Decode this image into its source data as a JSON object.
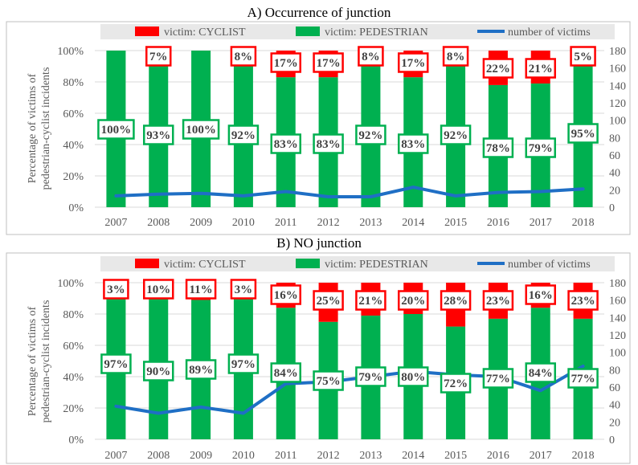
{
  "colors": {
    "cyclist": "#ff0000",
    "pedestrian": "#00b050",
    "line": "#1f6fc5",
    "panel_border": "#bfbfbf",
    "legend_bg": "#e8e8e8",
    "grid": "#d9d9d9",
    "text": "#595959"
  },
  "chart_data": [
    {
      "type": "bar",
      "stacked": true,
      "title": "A)    Occurrence of junction",
      "ylabel": "Percentage of victims of pedestrian-cyclist incidents",
      "categories": [
        "2007",
        "2008",
        "2009",
        "2010",
        "2011",
        "2012",
        "2013",
        "2014",
        "2015",
        "2016",
        "2017",
        "2018"
      ],
      "legend": [
        "victim: CYCLIST",
        "victim: PEDESTRIAN",
        "number of victims"
      ],
      "legend_position": "top",
      "y_ticks": [
        "0%",
        "20%",
        "40%",
        "60%",
        "80%",
        "100%"
      ],
      "y2_ticks": [
        "0",
        "20",
        "40",
        "60",
        "80",
        "100",
        "120",
        "140",
        "160",
        "180"
      ],
      "ylim": [
        0,
        100
      ],
      "y2lim": [
        0,
        180
      ],
      "grid": true,
      "series": [
        {
          "name": "victim: CYCLIST",
          "kind": "bar",
          "values": [
            0,
            7,
            0,
            8,
            17,
            17,
            8,
            17,
            8,
            22,
            21,
            5
          ],
          "labels": [
            "",
            "7%",
            "",
            "8%",
            "17%",
            "17%",
            "8%",
            "17%",
            "8%",
            "22%",
            "21%",
            "5%"
          ]
        },
        {
          "name": "victim: PEDESTRIAN",
          "kind": "bar",
          "values": [
            100,
            93,
            100,
            92,
            83,
            83,
            92,
            83,
            92,
            78,
            79,
            95
          ],
          "labels": [
            "100%",
            "93%",
            "100%",
            "92%",
            "83%",
            "83%",
            "92%",
            "83%",
            "92%",
            "78%",
            "79%",
            "95%"
          ]
        },
        {
          "name": "number of victims",
          "kind": "line",
          "axis": "right",
          "values": [
            13,
            15,
            16,
            13,
            18,
            12,
            12,
            23,
            13,
            17,
            18,
            21
          ]
        }
      ]
    },
    {
      "type": "bar",
      "stacked": true,
      "title": "B)    NO junction",
      "ylabel": "Percentage of victims of pedestrian-cyclist incidents",
      "categories": [
        "2007",
        "2008",
        "2009",
        "2010",
        "2011",
        "2012",
        "2013",
        "2014",
        "2015",
        "2016",
        "2017",
        "2018"
      ],
      "legend": [
        "victim: CYCLIST",
        "victim: PEDESTRIAN",
        "number of victims"
      ],
      "legend_position": "top",
      "y_ticks": [
        "0%",
        "20%",
        "40%",
        "60%",
        "80%",
        "100%"
      ],
      "y2_ticks": [
        "0",
        "20",
        "40",
        "60",
        "80",
        "100",
        "120",
        "140",
        "160",
        "180"
      ],
      "ylim": [
        0,
        100
      ],
      "y2lim": [
        0,
        180
      ],
      "grid": true,
      "series": [
        {
          "name": "victim: CYCLIST",
          "kind": "bar",
          "values": [
            3,
            10,
            11,
            3,
            16,
            25,
            21,
            20,
            28,
            23,
            16,
            23
          ],
          "labels": [
            "3%",
            "10%",
            "11%",
            "3%",
            "16%",
            "25%",
            "21%",
            "20%",
            "28%",
            "23%",
            "16%",
            "23%"
          ]
        },
        {
          "name": "victim: PEDESTRIAN",
          "kind": "bar",
          "values": [
            97,
            90,
            89,
            97,
            84,
            75,
            79,
            80,
            72,
            77,
            84,
            77
          ],
          "labels": [
            "97%",
            "90%",
            "89%",
            "97%",
            "84%",
            "75%",
            "79%",
            "80%",
            "72%",
            "77%",
            "84%",
            "77%"
          ]
        },
        {
          "name": "number of victims",
          "kind": "line",
          "axis": "right",
          "values": [
            38,
            30,
            37,
            30,
            64,
            66,
            72,
            78,
            74,
            72,
            56,
            84
          ]
        }
      ]
    }
  ]
}
